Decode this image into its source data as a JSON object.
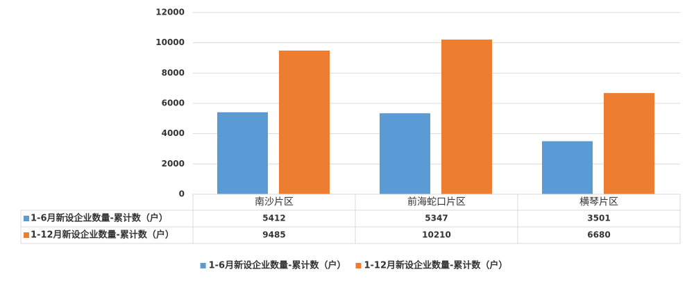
{
  "chart_data": {
    "type": "bar",
    "categories": [
      "南沙片区",
      "前海蛇口片区",
      "横琴片区"
    ],
    "series": [
      {
        "name": "1-6月新设企业数量-累计数（户）",
        "color": "#5b9bd5",
        "values": [
          5412,
          5347,
          3501
        ]
      },
      {
        "name": "1-12月新设企业数量-累计数（户）",
        "color": "#ed7d31",
        "values": [
          9485,
          10210,
          6680
        ]
      }
    ],
    "ylim": [
      0,
      12000
    ],
    "yticks": [
      0,
      2000,
      4000,
      6000,
      8000,
      10000,
      12000
    ],
    "grid": true,
    "data_table": true,
    "legend": "bottom"
  }
}
